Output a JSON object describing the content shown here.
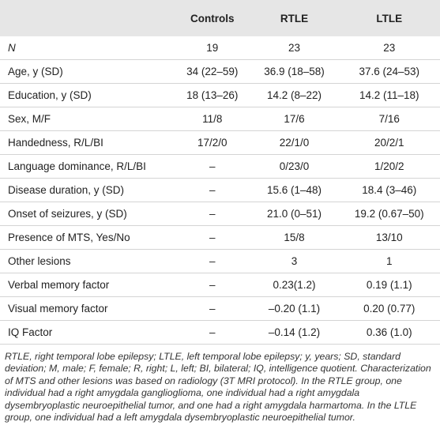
{
  "table": {
    "columns": [
      "",
      "Controls",
      "RTLE",
      "LTLE"
    ],
    "rows": [
      [
        "N",
        "19",
        "23",
        "23"
      ],
      [
        "Age, y (SD)",
        "34 (22–59)",
        "36.9 (18–58)",
        "37.6 (24–53)"
      ],
      [
        "Education, y (SD)",
        "18 (13–26)",
        "14.2 (8–22)",
        "14.2 (11–18)"
      ],
      [
        "Sex, M/F",
        "11/8",
        "17/6",
        "7/16"
      ],
      [
        "Handedness, R/L/BI",
        "17/2/0",
        "22/1/0",
        "20/2/1"
      ],
      [
        "Language dominance, R/L/BI",
        "–",
        "0/23/0",
        "1/20/2"
      ],
      [
        "Disease duration, y (SD)",
        "–",
        "15.6 (1–48)",
        "18.4 (3–46)"
      ],
      [
        "Onset of seizures, y (SD)",
        "–",
        "21.0 (0–51)",
        "19.2 (0.67–50)"
      ],
      [
        "Presence of MTS, Yes/No",
        "–",
        "15/8",
        "13/10"
      ],
      [
        "Other lesions",
        "–",
        "3",
        "1"
      ],
      [
        "Verbal memory factor",
        "–",
        "0.23(1.2)",
        "0.19 (1.1)"
      ],
      [
        "Visual memory factor",
        "–",
        "–0.20 (1.1)",
        "0.20 (0.77)"
      ],
      [
        "IQ Factor",
        "–",
        "–0.14 (1.2)",
        "0.36 (1.0)"
      ]
    ]
  },
  "footnote": "RTLE, right temporal lobe epilepsy; LTLE, left temporal lobe epilepsy; y, years; SD, standard deviation; M, male; F, female; R, right; L, left; BI, bilateral; IQ, intelligence quotient. Characterization of MTS and other lesions was based on radiology (3T MRI protocol). In the RTLE group, one individual had a right amygdala ganglioglioma, one individual had a right amygdala dysembryoplastic neuroepithelial tumor, and one had a right amygdala harmartoma. In the LTLE group, one individual had a left amygdala dysembryoplastic neuroepithelial tumor."
}
